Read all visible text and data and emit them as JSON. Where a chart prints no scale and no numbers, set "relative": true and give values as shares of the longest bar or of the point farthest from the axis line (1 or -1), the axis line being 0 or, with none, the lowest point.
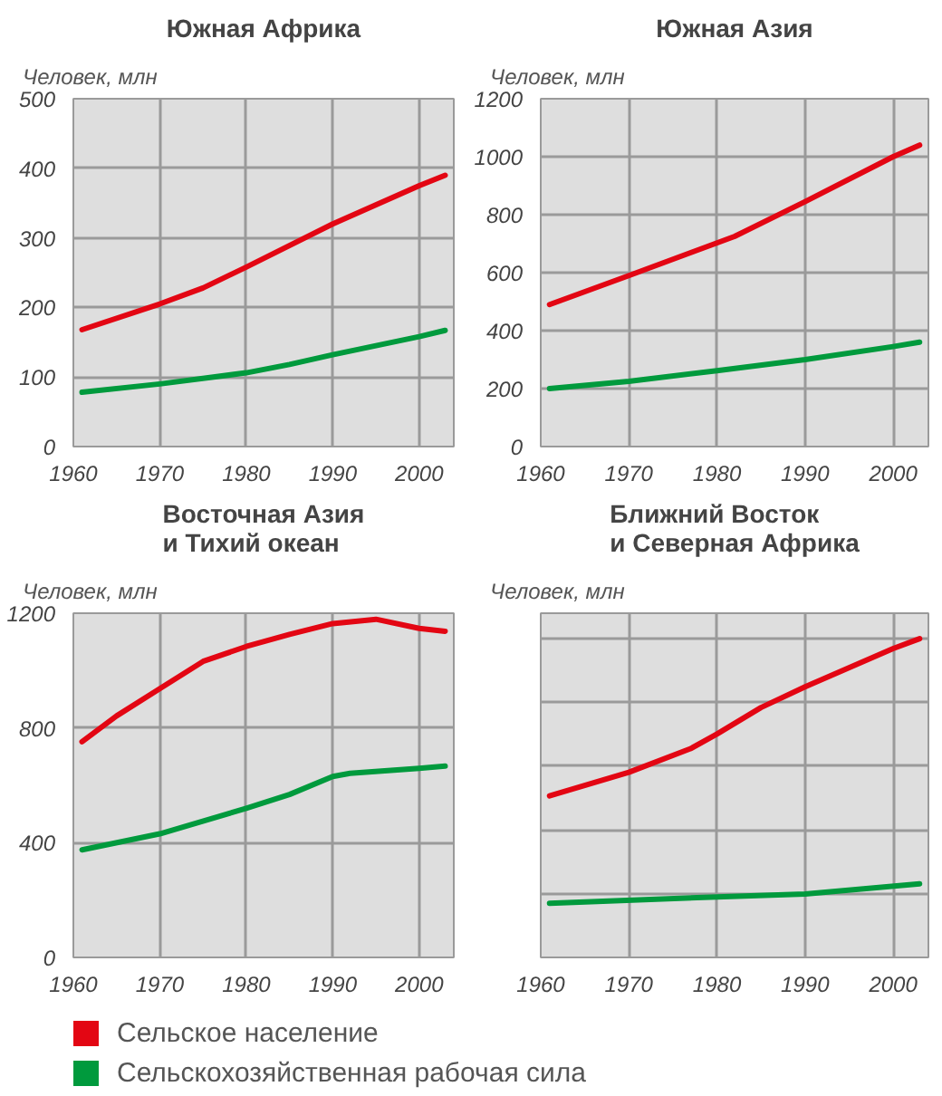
{
  "chart_data": [
    {
      "type": "line",
      "title": "Южная Африка",
      "ylabel": "Человек, млн",
      "xlim": [
        1960,
        2004
      ],
      "xticks": [
        1960,
        1970,
        1980,
        1990,
        2000
      ],
      "ylim": [
        0,
        500
      ],
      "yticks": [
        0,
        100,
        200,
        300,
        400,
        500
      ],
      "grid": true,
      "legend": "bottom",
      "series": [
        {
          "name": "Сельское население",
          "color": "#e30613",
          "x": [
            1961,
            1970,
            1975,
            1980,
            1990,
            2000,
            2003
          ],
          "values": [
            168,
            205,
            228,
            258,
            320,
            375,
            390
          ]
        },
        {
          "name": "Сельскохозяйственная рабочая сила",
          "color": "#009a3d",
          "x": [
            1961,
            1970,
            1980,
            1985,
            1990,
            2000,
            2003
          ],
          "values": [
            78,
            90,
            106,
            118,
            132,
            158,
            167
          ]
        }
      ]
    },
    {
      "type": "line",
      "title": "Южная Азия",
      "ylabel": "Человек, млн",
      "xlim": [
        1960,
        2004
      ],
      "xticks": [
        1960,
        1970,
        1980,
        1990,
        2000
      ],
      "ylim": [
        0,
        1200
      ],
      "yticks": [
        0,
        200,
        400,
        600,
        800,
        1000,
        1200
      ],
      "grid": true,
      "series": [
        {
          "color": "#e30613",
          "x": [
            1961,
            1970,
            1982,
            1990,
            2000,
            2003
          ],
          "values": [
            490,
            590,
            725,
            845,
            1000,
            1040
          ]
        },
        {
          "color": "#009a3d",
          "x": [
            1961,
            1970,
            1980,
            1990,
            2000,
            2003
          ],
          "values": [
            200,
            225,
            262,
            300,
            345,
            360
          ]
        }
      ]
    },
    {
      "type": "line",
      "title": "Восточная Азия\nи Тихий океан",
      "ylabel": "Человек, млн",
      "xlim": [
        1960,
        2004
      ],
      "xticks": [
        1960,
        1970,
        1980,
        1990,
        2000
      ],
      "ylim": [
        0,
        1200
      ],
      "yticks": [
        0,
        400,
        800,
        1200
      ],
      "grid": true,
      "series": [
        {
          "color": "#e30613",
          "x": [
            1961,
            1965,
            1970,
            1975,
            1980,
            1985,
            1990,
            1995,
            2000,
            2003
          ],
          "values": [
            752,
            842,
            937,
            1032,
            1084,
            1126,
            1164,
            1179,
            1147,
            1137
          ]
        },
        {
          "color": "#009a3d",
          "x": [
            1961,
            1970,
            1980,
            1985,
            1990,
            1992,
            2000,
            2003
          ],
          "values": [
            375,
            431,
            520,
            568,
            631,
            642,
            659,
            667
          ]
        }
      ]
    },
    {
      "type": "line",
      "title": "Ближний Восток\nи Северная Африка",
      "ylabel": "Человек, млн",
      "xlim": [
        1960,
        2004
      ],
      "xticks": [
        1960,
        1970,
        1980,
        1990,
        2000
      ],
      "relative": true,
      "grid": true,
      "series": [
        {
          "color": "#e30613",
          "x": [
            1961,
            1970,
            1977,
            1980,
            1985,
            1990,
            2000,
            2003
          ],
          "values": [
            0.507,
            0.581,
            0.655,
            0.701,
            0.784,
            0.849,
            0.969,
            1
          ]
        },
        {
          "color": "#009a3d",
          "x": [
            1961,
            1980,
            1990,
            2003
          ],
          "values": [
            0.17,
            0.19,
            0.199,
            0.231
          ]
        }
      ]
    }
  ]
}
